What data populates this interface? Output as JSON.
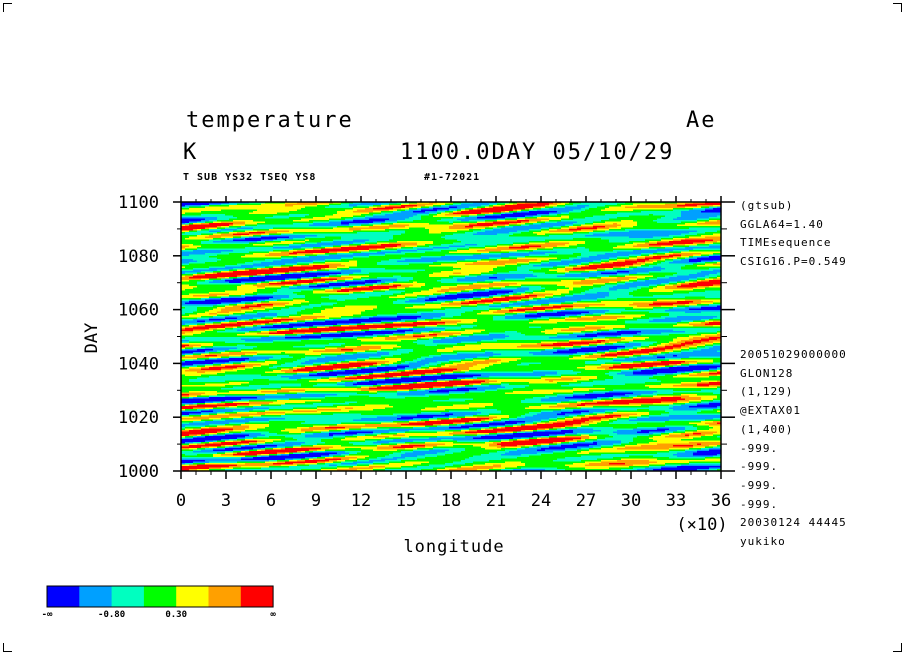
{
  "header": {
    "title_left": "temperature",
    "title_right": "Ae",
    "unit": "K",
    "time_label": "1100.0DAY 05/10/29",
    "sub_left": "T SUB YS32 TSEQ YS8",
    "sub_right": "#1-72021"
  },
  "side_info": {
    "top": [
      "(gtsub)",
      "GGLA64=1.40",
      "TIMEsequence",
      "CSIG16.P=0.549"
    ],
    "bottom": [
      "20051029000000",
      "GLON128",
      "(1,129)",
      "@EXTAX01",
      "(1,400)",
      "-999.",
      "-999.",
      "-999.",
      "-999.",
      "20030124  44445",
      "yukiko"
    ]
  },
  "chart_data": {
    "type": "heatmap",
    "title": "temperature",
    "xlabel": "longitude",
    "ylabel": "DAY",
    "x_multiplier_label": "(×10)",
    "x_ticks": [
      "0",
      "3",
      "6",
      "9",
      "12",
      "15",
      "18",
      "21",
      "24",
      "27",
      "30",
      "33",
      "36"
    ],
    "y_ticks": [
      "1000",
      "1020",
      "1040",
      "1060",
      "1080",
      "1100"
    ],
    "xlim": [
      0,
      36
    ],
    "ylim": [
      1000,
      1100
    ],
    "colorbar": {
      "colors": [
        "#0000ff",
        "#00a0ff",
        "#00ffc0",
        "#00ff00",
        "#ffff00",
        "#ffa000",
        "#ff0000"
      ],
      "labels": [
        "-∞",
        "-0.80",
        "0.30",
        "∞"
      ]
    }
  }
}
